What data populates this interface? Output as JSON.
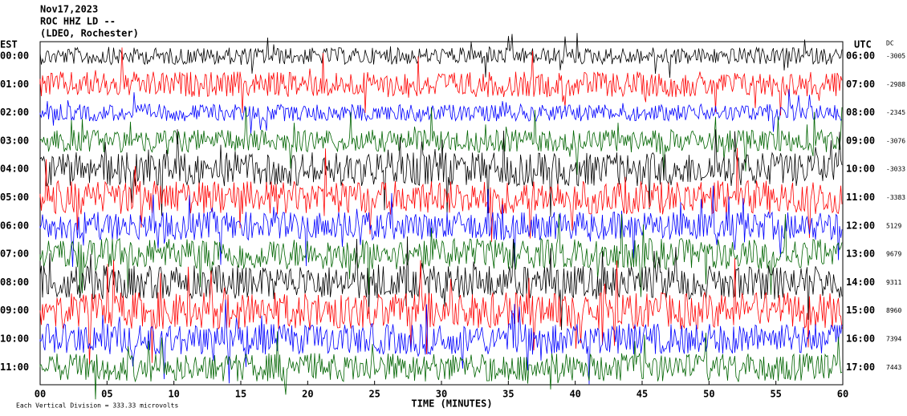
{
  "chart_data": {
    "type": "helicorder",
    "title_lines": [
      "Nov17,2023",
      "ROC HHZ LD --",
      "(LDEO, Rochester)"
    ],
    "left_axis_label": "EST",
    "right_axis_label": "UTC",
    "dc_label": "DC",
    "x_label": "TIME (MINUTES)",
    "footnote": "Each Vertical Division =  333.33 microvolts",
    "categories": [
      "00:00",
      "01:00",
      "02:00",
      "03:00",
      "04:00",
      "05:00",
      "06:00",
      "07:00",
      "08:00",
      "09:00",
      "10:00",
      "11:00"
    ],
    "right_labels": [
      "06:00",
      "07:00",
      "08:00",
      "09:00",
      "10:00",
      "11:00",
      "12:00",
      "13:00",
      "14:00",
      "15:00",
      "16:00",
      "17:00"
    ],
    "dc_values": [
      -3005,
      -2988,
      -2345,
      -3076,
      -3033,
      -3383,
      5129,
      9679,
      9311,
      8960,
      7394,
      7443
    ],
    "colors": [
      "#000000",
      "#ff0000",
      "#0000ff",
      "#006400",
      "#000000",
      "#ff0000",
      "#0000ff",
      "#006400",
      "#000000",
      "#ff0000",
      "#0000ff",
      "#006400"
    ],
    "amplitude": [
      0.6,
      0.9,
      0.6,
      0.8,
      1.2,
      1.2,
      1.0,
      1.1,
      1.2,
      1.3,
      1.1,
      1.0
    ],
    "xlim": [
      0,
      60
    ],
    "xticks": [
      {
        "value": 0,
        "label": "00"
      },
      {
        "value": 5,
        "label": "05"
      },
      {
        "value": 10,
        "label": "10"
      },
      {
        "value": 15,
        "label": "15"
      },
      {
        "value": 20,
        "label": "20"
      },
      {
        "value": 25,
        "label": "25"
      },
      {
        "value": 30,
        "label": "30"
      },
      {
        "value": 35,
        "label": "35"
      },
      {
        "value": 40,
        "label": "40"
      },
      {
        "value": 45,
        "label": "45"
      },
      {
        "value": 50,
        "label": "50"
      },
      {
        "value": 55,
        "label": "55"
      },
      {
        "value": 60,
        "label": "60"
      }
    ]
  }
}
